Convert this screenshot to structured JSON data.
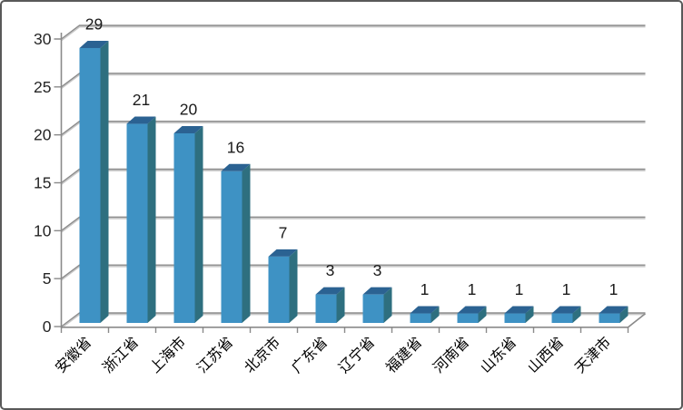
{
  "chart_data": {
    "type": "bar",
    "style": "3d-column",
    "title": "",
    "xlabel": "",
    "ylabel": "",
    "categories": [
      "安徽省",
      "浙江省",
      "上海市",
      "江苏省",
      "北京市",
      "广东省",
      "辽宁省",
      "福建省",
      "河南省",
      "山东省",
      "山西省",
      "天津市"
    ],
    "values": [
      29,
      21,
      20,
      16,
      7,
      3,
      3,
      1,
      1,
      1,
      1,
      1
    ],
    "data_labels": [
      29,
      21,
      20,
      16,
      7,
      3,
      3,
      1,
      1,
      1,
      1,
      1
    ],
    "ylim": [
      0,
      30
    ],
    "yticks": [
      0,
      5,
      10,
      15,
      20,
      25,
      30
    ],
    "grid": true,
    "legend": "none",
    "category_label_rotation_deg": -45
  },
  "colors": {
    "background": "#FFFFFF",
    "frame_border": "#595959",
    "bar_front": "#3E92C4",
    "bar_top": "#2B6292",
    "bar_side": "#2E6F7F",
    "gridline": "#8D8D8D",
    "gridline_light": "#C9C9C9",
    "axis": "#8A8A8A",
    "tick": "#8A8A8A",
    "value_label_text": "#1A1A1A",
    "axis_label_text": "#262626",
    "category_label_text": "#000000"
  }
}
